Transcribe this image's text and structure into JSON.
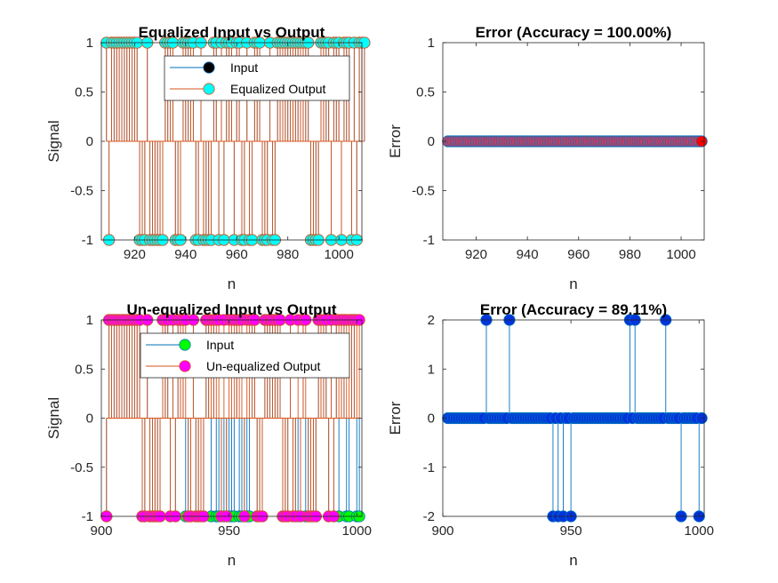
{
  "figure": {
    "background": "#ffffff"
  },
  "chart_data": [
    {
      "id": "p1",
      "type": "stem",
      "title": "Equalized Input vs Output",
      "xlabel": "n",
      "ylabel": "Signal",
      "xlim": [
        907,
        1009
      ],
      "ylim": [
        -1,
        1
      ],
      "xticks": [
        920,
        940,
        960,
        980,
        1000
      ],
      "yticks": [
        -1,
        -0.5,
        0,
        0.5,
        1
      ],
      "ytick_labels": [
        "-1",
        "-0.5",
        "0",
        "0.5",
        "1"
      ],
      "x_start": 909,
      "legend": {
        "placement": "top-right",
        "entries": [
          "Input",
          "Equalized Output"
        ]
      },
      "series": [
        {
          "name": "Input",
          "line_color": "#0072BD",
          "marker_color": "#000000",
          "values": [
            1,
            -1,
            1,
            1,
            1,
            1,
            1,
            1,
            1,
            1,
            1,
            1,
            1,
            -1,
            -1,
            -1,
            1,
            -1,
            -1,
            -1,
            -1,
            -1,
            -1,
            1,
            1,
            1,
            1,
            -1,
            -1,
            -1,
            1,
            1,
            1,
            1,
            1,
            -1,
            -1,
            1,
            -1,
            -1,
            -1,
            -1,
            1,
            1,
            -1,
            1,
            -1,
            1,
            1,
            1,
            -1,
            1,
            1,
            -1,
            -1,
            1,
            -1,
            -1,
            1,
            1,
            1,
            -1,
            -1,
            -1,
            1,
            -1,
            -1,
            1,
            1,
            1,
            1,
            1,
            1,
            1,
            1,
            1,
            1,
            1,
            1,
            1,
            -1,
            -1,
            -1,
            -1,
            1,
            1,
            1,
            1,
            -1,
            1,
            1,
            1,
            -1,
            1,
            1,
            1,
            -1,
            1,
            -1,
            1,
            1,
            1
          ]
        },
        {
          "name": "Equalized Output",
          "line_color": "#D95319",
          "marker_color": "#00FFFF",
          "values": [
            1,
            -1,
            1,
            1,
            1,
            1,
            1,
            1,
            1,
            1,
            1,
            1,
            1,
            -1,
            -1,
            -1,
            1,
            -1,
            -1,
            -1,
            -1,
            -1,
            -1,
            1,
            1,
            1,
            1,
            -1,
            -1,
            -1,
            1,
            1,
            1,
            1,
            1,
            -1,
            -1,
            1,
            -1,
            -1,
            -1,
            -1,
            1,
            1,
            -1,
            1,
            -1,
            1,
            1,
            1,
            -1,
            1,
            1,
            -1,
            -1,
            1,
            -1,
            -1,
            1,
            1,
            1,
            -1,
            -1,
            -1,
            1,
            -1,
            -1,
            1,
            1,
            1,
            1,
            1,
            1,
            1,
            1,
            1,
            1,
            1,
            1,
            1,
            -1,
            -1,
            -1,
            -1,
            1,
            1,
            1,
            1,
            -1,
            1,
            1,
            1,
            -1,
            1,
            1,
            1,
            -1,
            1,
            -1,
            1,
            1,
            1
          ]
        }
      ]
    },
    {
      "id": "p2",
      "type": "stem",
      "title": "Error (Accuracy = 100.00%)",
      "xlabel": "n",
      "ylabel": "Error",
      "xlim": [
        907,
        1009
      ],
      "ylim": [
        -1,
        1
      ],
      "xticks": [
        920,
        940,
        960,
        980,
        1000
      ],
      "yticks": [
        -1,
        -0.5,
        0,
        0.5,
        1
      ],
      "ytick_labels": [
        "-1",
        "-0.5",
        "0",
        "0.5",
        "1"
      ],
      "x_start": 909,
      "series": [
        {
          "name": "",
          "line_color": "#0072BD",
          "marker_color": "#D33A5C",
          "last_marker_color": "#FF0000",
          "values": [
            0,
            0,
            0,
            0,
            0,
            0,
            0,
            0,
            0,
            0,
            0,
            0,
            0,
            0,
            0,
            0,
            0,
            0,
            0,
            0,
            0,
            0,
            0,
            0,
            0,
            0,
            0,
            0,
            0,
            0,
            0,
            0,
            0,
            0,
            0,
            0,
            0,
            0,
            0,
            0,
            0,
            0,
            0,
            0,
            0,
            0,
            0,
            0,
            0,
            0,
            0,
            0,
            0,
            0,
            0,
            0,
            0,
            0,
            0,
            0,
            0,
            0,
            0,
            0,
            0,
            0,
            0,
            0,
            0,
            0,
            0,
            0,
            0,
            0,
            0,
            0,
            0,
            0,
            0,
            0,
            0,
            0,
            0,
            0,
            0,
            0,
            0,
            0,
            0,
            0,
            0,
            0,
            0,
            0,
            0,
            0,
            0,
            0,
            0,
            0
          ]
        }
      ]
    },
    {
      "id": "p3",
      "type": "stem",
      "title": "Un-equalized Input vs Output",
      "xlabel": "n",
      "ylabel": "Signal",
      "xlim": [
        900,
        1002
      ],
      "ylim": [
        -1,
        1
      ],
      "xticks": [
        900,
        950,
        1000
      ],
      "yticks": [
        -1,
        -0.5,
        0,
        0.5,
        1
      ],
      "ytick_labels": [
        "-1",
        "-0.5",
        "0",
        "0.5",
        "1"
      ],
      "x_start": 902,
      "legend": {
        "placement": "top-right",
        "entries": [
          "Input",
          "Un-equalized Output"
        ]
      },
      "series": [
        {
          "name": "Input",
          "line_color": "#0072BD",
          "marker_color": "#00FF00",
          "values": [
            -1,
            1,
            1,
            1,
            1,
            1,
            1,
            1,
            1,
            1,
            1,
            1,
            1,
            1,
            -1,
            -1,
            1,
            -1,
            -1,
            -1,
            -1,
            -1,
            1,
            1,
            1,
            -1,
            1,
            -1,
            1,
            1,
            1,
            -1,
            -1,
            -1,
            1,
            -1,
            -1,
            -1,
            -1,
            1,
            1,
            -1,
            1,
            -1,
            -1,
            -1,
            -1,
            -1,
            -1,
            -1,
            -1,
            1,
            -1,
            -1,
            -1,
            -1,
            -1,
            1,
            1,
            -1,
            -1,
            -1,
            1,
            1,
            1,
            1,
            1,
            1,
            1,
            -1,
            -1,
            -1,
            1,
            -1,
            -1,
            -1,
            -1,
            1,
            -1,
            -1,
            -1,
            -1,
            -1,
            1,
            1,
            1,
            1,
            -1,
            1,
            -1,
            1,
            -1,
            1,
            1,
            -1,
            -1,
            1,
            1,
            -1,
            -1
          ]
        },
        {
          "name": "Un-equalized Output",
          "line_color": "#D95319",
          "marker_color": "#FF00FF",
          "values": [
            -1,
            1,
            1,
            1,
            1,
            1,
            1,
            1,
            1,
            1,
            1,
            1,
            1,
            1,
            -1,
            -1,
            1,
            -1,
            -1,
            -1,
            -1,
            -1,
            1,
            1,
            1,
            -1,
            1,
            -1,
            1,
            1,
            1,
            1,
            -1,
            -1,
            1,
            -1,
            -1,
            -1,
            -1,
            1,
            1,
            1,
            1,
            1,
            1,
            -1,
            1,
            -1,
            1,
            1,
            1,
            1,
            1,
            1,
            -1,
            1,
            1,
            1,
            1,
            -1,
            -1,
            -1,
            1,
            1,
            1,
            1,
            1,
            1,
            1,
            -1,
            -1,
            -1,
            1,
            -1,
            -1,
            1,
            -1,
            1,
            1,
            -1,
            -1,
            -1,
            -1,
            1,
            1,
            1,
            1,
            -1,
            1,
            -1,
            1,
            1,
            1,
            1,
            1,
            1,
            1,
            1,
            1,
            1
          ]
        }
      ]
    },
    {
      "id": "p4",
      "type": "stem",
      "title": "Error (Accuracy = 89.11%)",
      "xlabel": "n",
      "ylabel": "Error",
      "xlim": [
        900,
        1002
      ],
      "ylim": [
        -2,
        2
      ],
      "xticks": [
        900,
        950,
        1000
      ],
      "yticks": [
        -2,
        -1,
        0,
        1,
        2
      ],
      "ytick_labels": [
        "-2",
        "-1",
        "0",
        "1",
        "2"
      ],
      "x_start": 902,
      "series": [
        {
          "name": "",
          "line_color": "#0072BD",
          "marker_color": "#0033DD",
          "values": [
            0,
            0,
            0,
            0,
            0,
            0,
            0,
            0,
            0,
            0,
            0,
            0,
            0,
            0,
            0,
            2,
            0,
            0,
            0,
            0,
            0,
            0,
            0,
            0,
            2,
            0,
            0,
            0,
            0,
            0,
            0,
            0,
            0,
            0,
            0,
            0,
            0,
            0,
            0,
            0,
            0,
            -2,
            0,
            -2,
            0,
            -2,
            0,
            0,
            -2,
            0,
            0,
            0,
            0,
            0,
            0,
            0,
            0,
            0,
            0,
            0,
            0,
            0,
            0,
            0,
            0,
            0,
            0,
            0,
            0,
            0,
            0,
            2,
            0,
            2,
            0,
            0,
            0,
            0,
            0,
            0,
            0,
            0,
            0,
            0,
            0,
            2,
            0,
            0,
            0,
            0,
            0,
            -2,
            0,
            0,
            0,
            0,
            0,
            0,
            -2,
            0
          ]
        }
      ]
    }
  ]
}
